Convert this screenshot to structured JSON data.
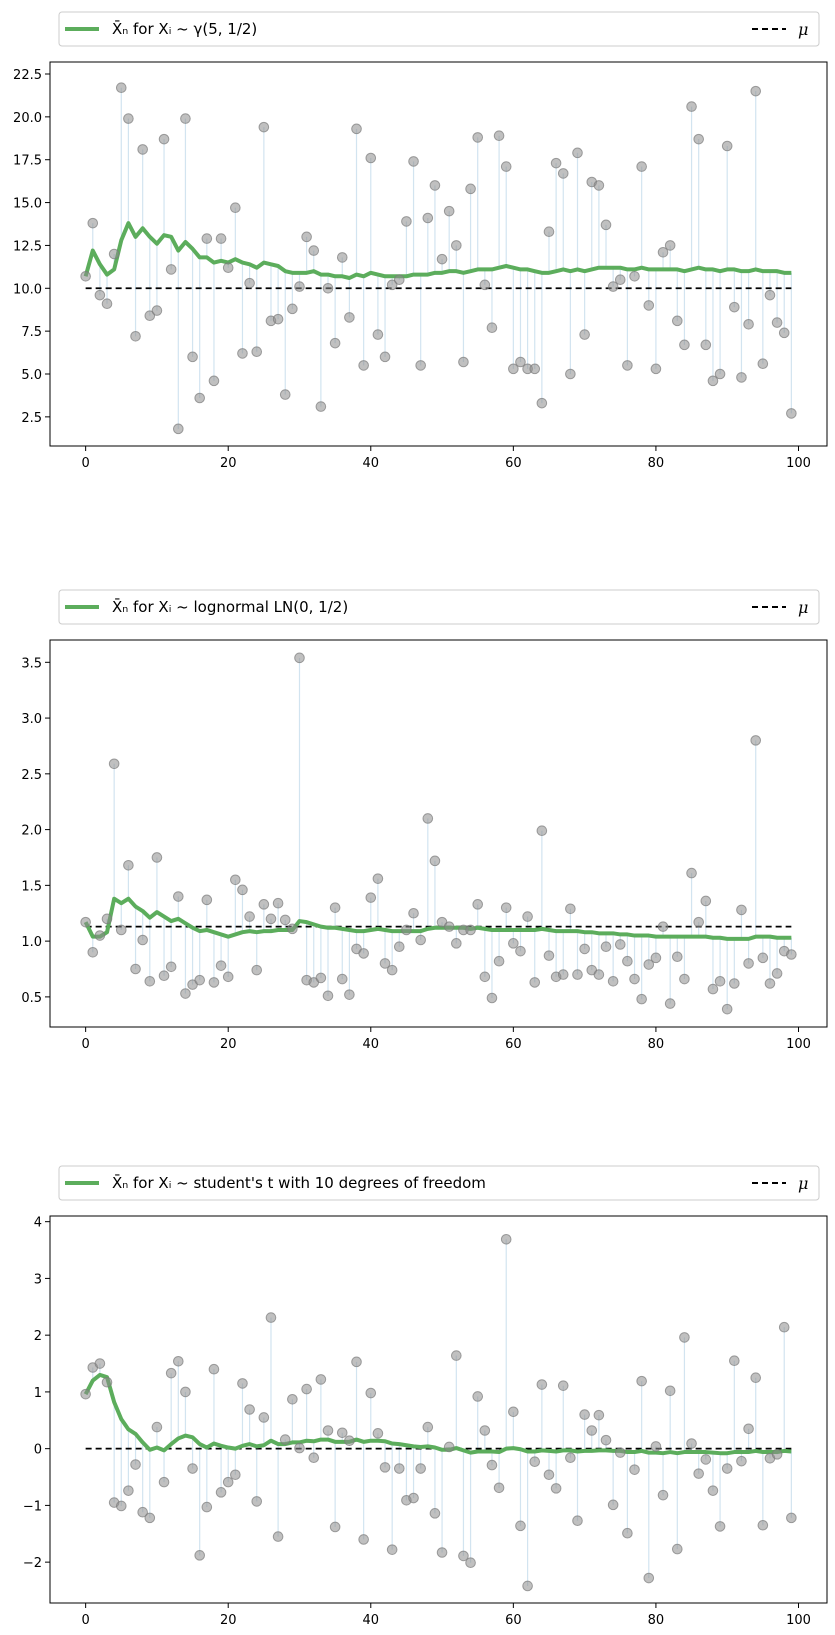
{
  "chart_data": [
    {
      "type": "scatter",
      "legend": {
        "placement": "top",
        "series_label": "X̄ₙ for Xᵢ ~ γ(5, 1/2)",
        "mu_label": "μ"
      },
      "mu": 10,
      "xlim": [
        -5,
        104
      ],
      "ylim": [
        0.8,
        23.2
      ],
      "xticks": [
        0,
        20,
        40,
        60,
        80,
        100
      ],
      "yticks": [
        2.5,
        5.0,
        7.5,
        10.0,
        12.5,
        15.0,
        17.5,
        20.0,
        22.5
      ],
      "ytick_labels": [
        "2.5",
        "5.0",
        "7.5",
        "10.0",
        "12.5",
        "15.0",
        "17.5",
        "20.0",
        "22.5"
      ],
      "samples": [
        10.7,
        13.8,
        9.6,
        9.1,
        12.0,
        21.7,
        19.9,
        7.2,
        18.1,
        8.4,
        8.7,
        18.7,
        11.1,
        1.8,
        19.9,
        6.0,
        3.6,
        12.9,
        4.6,
        12.9,
        11.2,
        14.7,
        6.2,
        10.3,
        6.3,
        19.4,
        8.1,
        8.2,
        3.8,
        8.8,
        10.1,
        13.0,
        12.2,
        3.1,
        10.0,
        6.8,
        11.8,
        8.3,
        19.3,
        5.5,
        17.6,
        7.3,
        6.0,
        10.2,
        10.5,
        13.9,
        17.4,
        5.5,
        14.1,
        16.0,
        11.7,
        14.5,
        12.5,
        5.7,
        15.8,
        18.8,
        10.2,
        7.7,
        18.9,
        17.1,
        5.3,
        5.7,
        5.3,
        5.3,
        3.3,
        13.3,
        17.3,
        16.7,
        5.0,
        17.9,
        7.3,
        16.2,
        16.0,
        13.7,
        10.1,
        10.5,
        5.5,
        10.7,
        17.1,
        9.0,
        5.3,
        12.1,
        12.5,
        8.1,
        6.7,
        20.6,
        18.7,
        6.7,
        4.6,
        5.0,
        18.3,
        8.9,
        4.8,
        7.9,
        21.5,
        5.6,
        9.6,
        8.0,
        7.4,
        2.7
      ],
      "running_mean": [
        10.7,
        12.2,
        11.4,
        10.8,
        11.1,
        12.8,
        13.8,
        13.0,
        13.5,
        13.0,
        12.6,
        13.1,
        13.0,
        12.2,
        12.7,
        12.3,
        11.8,
        11.8,
        11.5,
        11.6,
        11.5,
        11.7,
        11.5,
        11.4,
        11.2,
        11.5,
        11.4,
        11.3,
        11.0,
        10.9,
        10.9,
        10.9,
        11.0,
        10.8,
        10.8,
        10.7,
        10.7,
        10.6,
        10.8,
        10.7,
        10.9,
        10.8,
        10.7,
        10.7,
        10.7,
        10.7,
        10.8,
        10.8,
        10.8,
        10.9,
        10.9,
        11.0,
        11.0,
        10.9,
        11.0,
        11.1,
        11.1,
        11.1,
        11.2,
        11.3,
        11.2,
        11.1,
        11.1,
        11.0,
        10.9,
        10.9,
        11.0,
        11.1,
        11.0,
        11.1,
        11.0,
        11.1,
        11.2,
        11.2,
        11.2,
        11.2,
        11.1,
        11.1,
        11.2,
        11.1,
        11.1,
        11.1,
        11.1,
        11.1,
        11.0,
        11.1,
        11.2,
        11.1,
        11.1,
        11.0,
        11.1,
        11.1,
        11.0,
        11.0,
        11.1,
        11.0,
        11.0,
        11.0,
        10.9,
        10.9
      ]
    },
    {
      "type": "scatter",
      "legend": {
        "placement": "top",
        "series_label": "X̄ₙ for Xᵢ ~ lognormal LN(0, 1/2)",
        "mu_label": "μ"
      },
      "mu": 1.13,
      "xlim": [
        -5,
        104
      ],
      "ylim": [
        0.23,
        3.7
      ],
      "xticks": [
        0,
        20,
        40,
        60,
        80,
        100
      ],
      "yticks": [
        0.5,
        1.0,
        1.5,
        2.0,
        2.5,
        3.0,
        3.5
      ],
      "ytick_labels": [
        "0.5",
        "1.0",
        "1.5",
        "2.0",
        "2.5",
        "3.0",
        "3.5"
      ],
      "samples": [
        1.17,
        0.9,
        1.05,
        1.2,
        2.59,
        1.1,
        1.68,
        0.75,
        1.01,
        0.64,
        1.75,
        0.69,
        0.77,
        1.4,
        0.53,
        0.61,
        0.65,
        1.37,
        0.63,
        0.78,
        0.68,
        1.55,
        1.46,
        1.22,
        0.74,
        1.33,
        1.2,
        1.34,
        1.19,
        1.11,
        3.54,
        0.65,
        0.63,
        0.67,
        0.51,
        1.3,
        0.66,
        0.52,
        0.93,
        0.89,
        1.39,
        1.56,
        0.8,
        0.74,
        0.95,
        1.1,
        1.25,
        1.01,
        2.1,
        1.72,
        1.17,
        1.13,
        0.98,
        1.1,
        1.1,
        1.33,
        0.68,
        0.49,
        0.82,
        1.3,
        0.98,
        0.91,
        1.22,
        0.63,
        1.99,
        0.87,
        0.68,
        0.7,
        1.29,
        0.7,
        0.93,
        0.74,
        0.7,
        0.95,
        0.64,
        0.97,
        0.82,
        0.66,
        0.48,
        0.79,
        0.85,
        1.13,
        0.44,
        0.86,
        0.66,
        1.61,
        1.17,
        1.36,
        0.57,
        0.64,
        0.39,
        0.62,
        1.28,
        0.8,
        2.8,
        0.85,
        0.62,
        0.71,
        0.91,
        0.88
      ],
      "running_mean": [
        1.17,
        1.04,
        1.04,
        1.08,
        1.38,
        1.34,
        1.38,
        1.31,
        1.27,
        1.21,
        1.26,
        1.22,
        1.18,
        1.2,
        1.16,
        1.12,
        1.09,
        1.1,
        1.08,
        1.06,
        1.04,
        1.06,
        1.08,
        1.09,
        1.08,
        1.09,
        1.09,
        1.1,
        1.1,
        1.1,
        1.18,
        1.17,
        1.15,
        1.13,
        1.12,
        1.12,
        1.11,
        1.1,
        1.09,
        1.09,
        1.1,
        1.11,
        1.1,
        1.09,
        1.09,
        1.09,
        1.09,
        1.09,
        1.11,
        1.12,
        1.12,
        1.12,
        1.12,
        1.12,
        1.11,
        1.12,
        1.11,
        1.1,
        1.1,
        1.1,
        1.1,
        1.1,
        1.1,
        1.1,
        1.11,
        1.1,
        1.09,
        1.09,
        1.09,
        1.09,
        1.08,
        1.08,
        1.07,
        1.07,
        1.07,
        1.06,
        1.06,
        1.05,
        1.05,
        1.05,
        1.04,
        1.04,
        1.04,
        1.04,
        1.04,
        1.04,
        1.04,
        1.04,
        1.03,
        1.03,
        1.02,
        1.02,
        1.02,
        1.02,
        1.04,
        1.04,
        1.04,
        1.03,
        1.03,
        1.03
      ]
    },
    {
      "type": "scatter",
      "legend": {
        "placement": "top",
        "series_label": "X̄ₙ for Xᵢ ~ student's t with 10 degrees of freedom",
        "mu_label": "μ"
      },
      "mu": 0,
      "xlim": [
        -5,
        104
      ],
      "ylim": [
        -2.72,
        4.1
      ],
      "xticks": [
        0,
        20,
        40,
        60,
        80,
        100
      ],
      "yticks": [
        -2,
        -1,
        0,
        1,
        2,
        3,
        4
      ],
      "ytick_labels": [
        "−2",
        "−1",
        "0",
        "1",
        "2",
        "3",
        "4"
      ],
      "samples": [
        0.96,
        1.43,
        1.5,
        1.17,
        -0.95,
        -1.01,
        -0.74,
        -0.28,
        -1.12,
        -1.22,
        0.38,
        -0.59,
        1.33,
        1.54,
        1.0,
        -0.35,
        -1.88,
        -1.03,
        1.4,
        -0.77,
        -0.59,
        -0.46,
        1.15,
        0.69,
        -0.93,
        0.55,
        2.31,
        -1.55,
        0.16,
        0.87,
        0.01,
        1.05,
        -0.16,
        1.22,
        0.32,
        -1.38,
        0.28,
        0.14,
        1.53,
        -1.6,
        0.98,
        0.27,
        -0.33,
        -1.78,
        -0.35,
        -0.91,
        -0.87,
        -0.35,
        0.38,
        -1.14,
        -1.83,
        0.03,
        1.64,
        -1.89,
        -2.01,
        0.92,
        0.32,
        -0.29,
        -0.69,
        3.69,
        0.65,
        -1.36,
        -2.42,
        -0.23,
        1.13,
        -0.46,
        -0.7,
        1.11,
        -0.16,
        -1.27,
        0.6,
        0.32,
        0.59,
        0.15,
        -0.99,
        -0.07,
        -1.49,
        -0.37,
        1.19,
        -2.28,
        0.04,
        -0.82,
        1.02,
        -1.77,
        1.96,
        0.09,
        -0.44,
        -0.19,
        -0.74,
        -1.37,
        -0.35,
        1.55,
        -0.22,
        0.35,
        1.25,
        -1.35,
        -0.17,
        -0.1,
        2.14,
        -1.22
      ],
      "running_mean": [
        0.96,
        1.2,
        1.3,
        1.26,
        0.82,
        0.52,
        0.34,
        0.26,
        0.11,
        -0.02,
        0.02,
        -0.03,
        0.08,
        0.18,
        0.23,
        0.2,
        0.08,
        0.02,
        0.09,
        0.05,
        0.02,
        0.0,
        0.05,
        0.08,
        0.04,
        0.06,
        0.14,
        0.08,
        0.08,
        0.11,
        0.11,
        0.14,
        0.13,
        0.16,
        0.16,
        0.12,
        0.12,
        0.12,
        0.16,
        0.12,
        0.14,
        0.14,
        0.13,
        0.09,
        0.08,
        0.06,
        0.04,
        0.03,
        0.04,
        0.02,
        -0.02,
        -0.02,
        0.01,
        -0.03,
        -0.07,
        -0.05,
        -0.05,
        -0.05,
        -0.06,
        0.0,
        0.01,
        -0.01,
        -0.05,
        -0.05,
        -0.03,
        -0.04,
        -0.05,
        -0.03,
        -0.03,
        -0.05,
        -0.04,
        -0.04,
        -0.03,
        -0.03,
        -0.04,
        -0.04,
        -0.06,
        -0.06,
        -0.04,
        -0.07,
        -0.07,
        -0.08,
        -0.06,
        -0.08,
        -0.06,
        -0.06,
        -0.06,
        -0.06,
        -0.07,
        -0.08,
        -0.08,
        -0.06,
        -0.06,
        -0.06,
        -0.04,
        -0.06,
        -0.06,
        -0.06,
        -0.04,
        -0.05
      ]
    }
  ]
}
